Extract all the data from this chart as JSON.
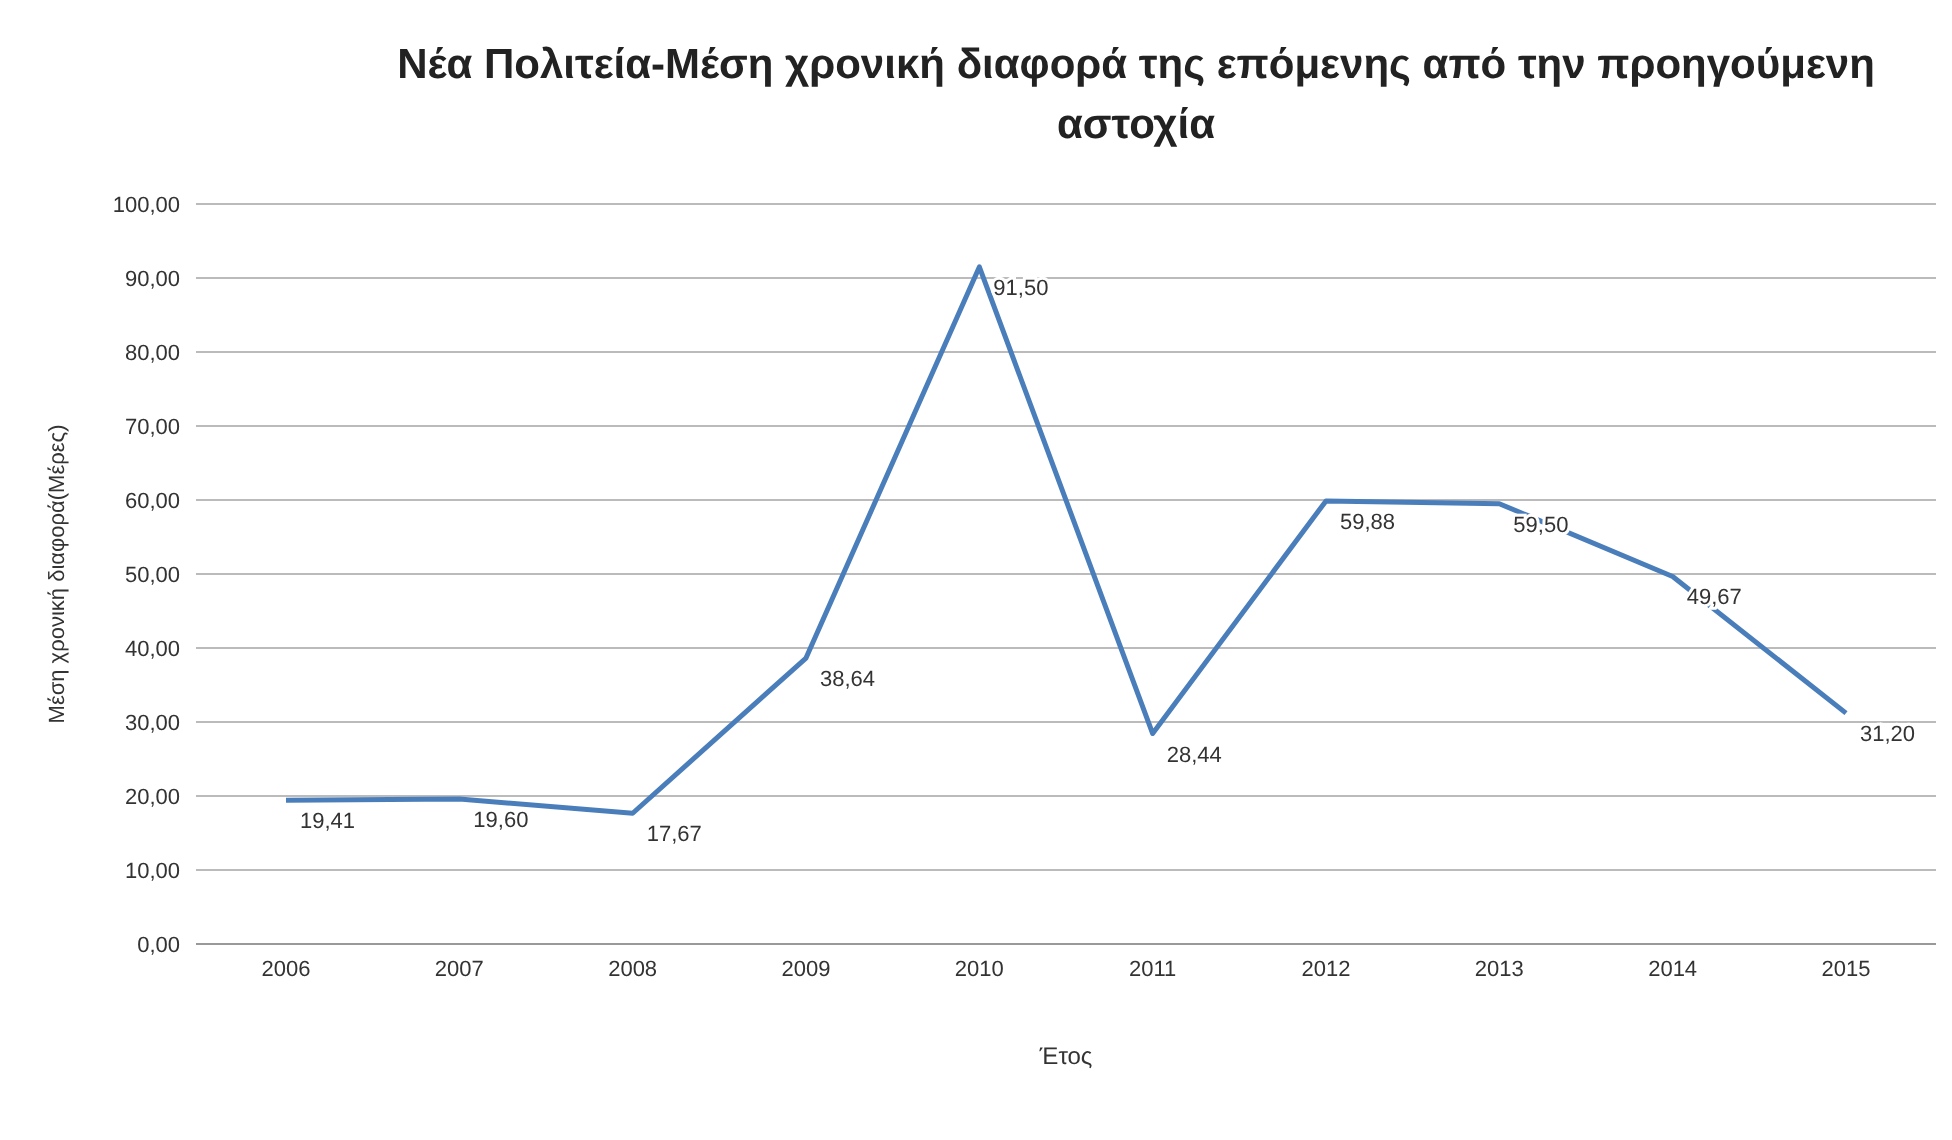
{
  "chart_data": {
    "type": "line",
    "title": "Νέα Πολιτεία-Μέση χρονική διαφορά της επόμενης από την προηγούμενη αστοχία",
    "xlabel": "Έτος",
    "ylabel": "Μέση χρονική διαφορά(Μέρες)",
    "categories": [
      "2006",
      "2007",
      "2008",
      "2009",
      "2010",
      "2011",
      "2012",
      "2013",
      "2014",
      "2015"
    ],
    "series": [
      {
        "color": "#4a7ebb",
        "values": [
          19.41,
          19.6,
          17.67,
          38.64,
          91.5,
          28.44,
          59.88,
          59.5,
          49.67,
          31.2
        ],
        "value_labels": [
          "19,41",
          "19,60",
          "17,67",
          "38,64",
          "91,50",
          "28,44",
          "59,88",
          "59,50",
          "49,67",
          "31,20"
        ]
      }
    ],
    "ylim": [
      0,
      100
    ],
    "yticks": [
      {
        "value": 0,
        "label": "0,00"
      },
      {
        "value": 10,
        "label": "10,00"
      },
      {
        "value": 20,
        "label": "20,00"
      },
      {
        "value": 30,
        "label": "30,00"
      },
      {
        "value": 40,
        "label": "40,00"
      },
      {
        "value": 50,
        "label": "50,00"
      },
      {
        "value": 60,
        "label": "60,00"
      },
      {
        "value": 70,
        "label": "70,00"
      },
      {
        "value": 80,
        "label": "80,00"
      },
      {
        "value": 90,
        "label": "90,00"
      },
      {
        "value": 100,
        "label": "100,00"
      }
    ],
    "grid": "y",
    "legend": false,
    "marker": "none",
    "line_style": "solid"
  }
}
